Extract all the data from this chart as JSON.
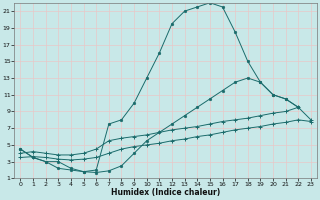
{
  "xlabel": "Humidex (Indice chaleur)",
  "background_color": "#c8e8e8",
  "grid_color": "#e8c8c8",
  "line_color": "#1a6b6b",
  "xlim": [
    -0.5,
    23.5
  ],
  "ylim": [
    1,
    22
  ],
  "xticks": [
    0,
    1,
    2,
    3,
    4,
    5,
    6,
    7,
    8,
    9,
    10,
    11,
    12,
    13,
    14,
    15,
    16,
    17,
    18,
    19,
    20,
    21,
    22,
    23
  ],
  "yticks": [
    1,
    3,
    5,
    7,
    9,
    11,
    13,
    15,
    17,
    19,
    21
  ],
  "c1x": [
    0,
    1,
    2,
    3,
    4,
    5,
    6,
    7,
    8,
    9,
    10,
    11,
    12,
    13,
    14,
    15,
    16,
    17,
    18,
    19,
    20,
    21,
    22
  ],
  "c1y": [
    4.5,
    3.5,
    3.0,
    3.0,
    2.2,
    1.8,
    2.0,
    7.5,
    8.0,
    10.0,
    13.0,
    16.0,
    19.5,
    21.0,
    21.5,
    22.0,
    21.5,
    18.5,
    15.0,
    12.5,
    11.0,
    10.5,
    9.5
  ],
  "c2x": [
    0,
    1,
    2,
    3,
    4,
    5,
    6,
    7,
    8,
    9,
    10,
    11,
    12,
    13,
    14,
    15,
    16,
    17,
    18,
    19,
    20,
    21,
    22
  ],
  "c2y": [
    4.5,
    3.5,
    3.0,
    2.2,
    2.0,
    1.8,
    1.7,
    1.9,
    2.5,
    4.0,
    5.5,
    6.5,
    7.5,
    8.5,
    9.5,
    10.5,
    11.5,
    12.5,
    13.0,
    12.5,
    11.0,
    10.5,
    9.5
  ],
  "c3x": [
    0,
    1,
    2,
    3,
    4,
    5,
    6,
    7,
    8,
    9,
    10,
    11,
    12,
    13,
    14,
    15,
    16,
    17,
    18,
    19,
    20,
    21,
    22,
    23
  ],
  "c3y": [
    4.0,
    4.2,
    4.0,
    3.8,
    3.8,
    4.0,
    4.5,
    5.5,
    5.8,
    6.0,
    6.2,
    6.5,
    6.8,
    7.0,
    7.2,
    7.5,
    7.8,
    8.0,
    8.2,
    8.5,
    8.8,
    9.0,
    9.5,
    8.0
  ],
  "c4x": [
    0,
    1,
    2,
    3,
    4,
    5,
    6,
    7,
    8,
    9,
    10,
    11,
    12,
    13,
    14,
    15,
    16,
    17,
    18,
    19,
    20,
    21,
    22,
    23
  ],
  "c4y": [
    3.5,
    3.6,
    3.5,
    3.3,
    3.2,
    3.3,
    3.5,
    4.0,
    4.5,
    4.8,
    5.0,
    5.2,
    5.5,
    5.7,
    6.0,
    6.2,
    6.5,
    6.8,
    7.0,
    7.2,
    7.5,
    7.7,
    8.0,
    7.8
  ]
}
